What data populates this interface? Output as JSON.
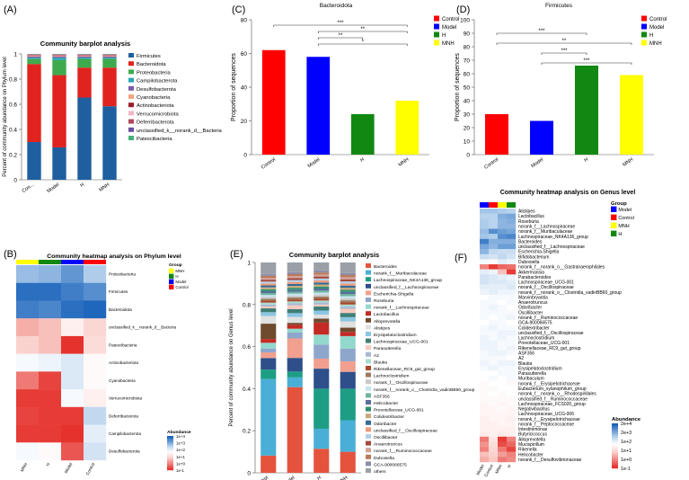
{
  "panels": {
    "A": "(A)",
    "B": "(B)",
    "C": "(C)",
    "D": "(D)",
    "E": "(E)",
    "F": "(F)"
  },
  "chart_data": [
    {
      "id": "A",
      "type": "bar",
      "stacked": true,
      "title": "Community barplot analysis",
      "ylabel": "Percent of community abundance on Phylum level",
      "ylim": [
        0,
        1
      ],
      "yticks": [
        "0",
        "0.2",
        "0.4",
        "0.6",
        "0.8",
        "1"
      ],
      "categories": [
        "Con...",
        "Model",
        "H",
        "MNH"
      ],
      "series": [
        {
          "name": "Firmicutes",
          "color": "#1f5fa0",
          "values": [
            0.3,
            0.26,
            0.66,
            0.59
          ]
        },
        {
          "name": "Bacteroidota",
          "color": "#e0231f",
          "values": [
            0.62,
            0.58,
            0.24,
            0.31
          ]
        },
        {
          "name": "Proteobacteria",
          "color": "#3faa4d",
          "values": [
            0.04,
            0.12,
            0.07,
            0.07
          ]
        },
        {
          "name": "Campilobacterota",
          "color": "#2aa7b5",
          "values": [
            0.01,
            0.02,
            0.01,
            0.01
          ]
        },
        {
          "name": "Desulfobacterota",
          "color": "#7b5aa6",
          "values": [
            0.01,
            0.01,
            0.01,
            0.01
          ]
        },
        {
          "name": "Cyanobacteria",
          "color": "#f4a582",
          "values": [
            0.005,
            0.005,
            0.005,
            0.005
          ]
        },
        {
          "name": "Actinobacteriota",
          "color": "#9b1c31",
          "values": [
            0.004,
            0.004,
            0.004,
            0.004
          ]
        },
        {
          "name": "Verrucomicrobiota",
          "color": "#f2b6c6",
          "values": [
            0.003,
            0.003,
            0.003,
            0.003
          ]
        },
        {
          "name": "Deferribacterota",
          "color": "#b5485d",
          "values": [
            0.003,
            0.003,
            0.003,
            0.003
          ]
        },
        {
          "name": "unclassified_k__norank_d__Bacteria",
          "color": "#6b4fa0",
          "values": [
            0.003,
            0.003,
            0.003,
            0.003
          ]
        },
        {
          "name": "Patescibacteria",
          "color": "#47b07a",
          "values": [
            0.002,
            0.002,
            0.002,
            0.002
          ]
        }
      ]
    },
    {
      "id": "C",
      "type": "bar",
      "title": "Bacteroidota",
      "ylabel": "Proportion of sequences",
      "ylim": [
        0,
        80
      ],
      "yticks": [
        0,
        20,
        40,
        60,
        80
      ],
      "categories": [
        "Control",
        "Model",
        "H",
        "MNH"
      ],
      "colors": [
        "#ff0000",
        "#0000ff",
        "#118811",
        "#ffff00"
      ],
      "values": [
        62,
        58,
        24,
        32
      ],
      "legend": [
        "Control",
        "Model",
        "H",
        "MNH"
      ],
      "significance": [
        {
          "from": 0,
          "to": 3,
          "label": "***"
        },
        {
          "from": 1,
          "to": 3,
          "label": "**"
        },
        {
          "from": 1,
          "to": 2,
          "label": "**"
        },
        {
          "from": 1,
          "to": 3,
          "label": "*"
        }
      ]
    },
    {
      "id": "D",
      "type": "bar",
      "title": "Firmicutes",
      "ylabel": "Proportion of sequences",
      "ylim": [
        0,
        100
      ],
      "yticks": [
        0,
        10,
        20,
        30,
        40,
        50,
        60,
        70,
        80,
        90,
        100
      ],
      "categories": [
        "Control",
        "Model",
        "H",
        "MNH"
      ],
      "colors": [
        "#ff0000",
        "#0000ff",
        "#118811",
        "#ffff00"
      ],
      "values": [
        30,
        25,
        66,
        59
      ],
      "legend": [
        "Control",
        "Model",
        "H",
        "MNH"
      ],
      "significance": [
        {
          "from": 0,
          "to": 2,
          "label": "***"
        },
        {
          "from": 0,
          "to": 3,
          "label": "**"
        },
        {
          "from": 1,
          "to": 2,
          "label": "***"
        },
        {
          "from": 1,
          "to": 3,
          "label": "***"
        }
      ]
    },
    {
      "id": "B",
      "type": "heatmap",
      "title": "Community heatmap analysis on Phylum level",
      "columns": [
        "MNH",
        "H",
        "Model",
        "Control"
      ],
      "column_colors": [
        "#ffff00",
        "#118811",
        "#0000ff",
        "#ff0000"
      ],
      "rows": [
        "Proteobacteria",
        "Firmicutes",
        "Bacteroidota",
        "unclassified_k__norank_d__Bacteria",
        "Patescibacteria",
        "Actinobacteriota",
        "Cyanobacteria",
        "Verrucomicrobiota",
        "Deferribacterota",
        "Campilobacterota",
        "Desulfobacterota"
      ],
      "log10_values": [
        [
          3.2,
          3.3,
          3.7,
          3.0
        ],
        [
          4.2,
          4.2,
          4.0,
          3.8
        ],
        [
          4.0,
          3.9,
          4.2,
          4.3
        ],
        [
          0.8,
          1.0,
          1.8,
          1.3
        ],
        [
          1.2,
          1.0,
          -0.6,
          1.4
        ],
        [
          2.2,
          2.3,
          2.5,
          2.0
        ],
        [
          0.2,
          -0.4,
          2.5,
          2.0
        ],
        [
          -0.5,
          -0.5,
          2.2,
          1.8
        ],
        [
          -0.4,
          -0.5,
          -0.5,
          2.8
        ],
        [
          -0.5,
          -0.5,
          -0.6,
          2.4
        ],
        [
          2.2,
          2.0,
          -0.2,
          2.6
        ]
      ],
      "legend": {
        "title": "Group",
        "items": [
          "MNH",
          "H",
          "Model",
          "Control"
        ]
      },
      "scale": {
        "title": "Abundance",
        "labels": [
          "1e+4",
          "1e+3",
          "1e+2",
          "1e+1",
          "1e+0",
          "1e-1"
        ]
      }
    },
    {
      "id": "E",
      "type": "bar",
      "stacked": true,
      "title": "Community barplot analysis",
      "ylabel": "Percent of community abundance on Genus level",
      "ylim": [
        0,
        1
      ],
      "yticks": [
        "0",
        "0.2",
        "0.4",
        "0.6",
        "0.8",
        "1"
      ],
      "categories": [
        "Control",
        "Model",
        "H",
        "MNH"
      ],
      "series": [
        {
          "name": "Bacteroides",
          "color": "#e5533d",
          "values": [
            0.09,
            0.44,
            0.12,
            0.1
          ]
        },
        {
          "name": "norank_f__Muribaculaceae",
          "color": "#4aafd6",
          "values": [
            0.4,
            0.05,
            0.1,
            0.15
          ]
        },
        {
          "name": "Lachnospiraceae_NK4A136_group",
          "color": "#1d9e84",
          "values": [
            0.05,
            0.03,
            0.2,
            0.15
          ]
        },
        {
          "name": "unclassified_f__Lachnospiraceae",
          "color": "#2e4f8a",
          "values": [
            0.06,
            0.07,
            0.1,
            0.08
          ]
        },
        {
          "name": "Escherichia-Shigella",
          "color": "#f1a08f",
          "values": [
            0.03,
            0.1,
            0.05,
            0.05
          ]
        },
        {
          "name": "Roseburia",
          "color": "#8fa6cc",
          "values": [
            0.02,
            0.03,
            0.07,
            0.06
          ]
        },
        {
          "name": "norank_f__Lachnospiraceae",
          "color": "#93d8cd",
          "values": [
            0.03,
            0.02,
            0.05,
            0.06
          ]
        },
        {
          "name": "Lactobacillus",
          "color": "#c42a24",
          "values": [
            0.02,
            0.02,
            0.06,
            0.02
          ]
        },
        {
          "name": "Alloprevotella",
          "color": "#6f4a2e",
          "values": [
            0.08,
            0.01,
            0.02,
            0.02
          ]
        },
        {
          "name": "Alistipes",
          "color": "#e0e0e0",
          "values": [
            0.04,
            0.03,
            0.02,
            0.03
          ]
        },
        {
          "name": "Erysipelatoclostridium",
          "color": "#8bc6e3",
          "values": [
            0.02,
            0.02,
            0.02,
            0.02
          ]
        },
        {
          "name": "Lachnospiraceae_UCG-001",
          "color": "#3e7e75",
          "values": [
            0.02,
            0.02,
            0.02,
            0.02
          ]
        },
        {
          "name": "Parasutterella",
          "color": "#f6c9bd",
          "values": [
            0.01,
            0.02,
            0.01,
            0.02
          ]
        },
        {
          "name": "A2",
          "color": "#a9b7d4",
          "values": [
            0.01,
            0.01,
            0.01,
            0.01
          ]
        },
        {
          "name": "Blautia",
          "color": "#a9dccf",
          "values": [
            0.01,
            0.01,
            0.01,
            0.01
          ]
        },
        {
          "name": "Rikenellaceae_RC9_gut_group",
          "color": "#a9482b",
          "values": [
            0.01,
            0.01,
            0.01,
            0.01
          ]
        },
        {
          "name": "Lachnoclostridium",
          "color": "#9c7a5c",
          "values": [
            0.01,
            0.01,
            0.01,
            0.01
          ]
        },
        {
          "name": "norank_f__Oscillospiraceae",
          "color": "#c9c9c9",
          "values": [
            0.01,
            0.01,
            0.01,
            0.01
          ]
        },
        {
          "name": "norank_f__norank_o__Clostridia_vadinBB60_group",
          "color": "#c6e3f0",
          "values": [
            0.01,
            0.01,
            0.01,
            0.01
          ]
        },
        {
          "name": "ASF356",
          "color": "#6fb39e",
          "values": [
            0.01,
            0.01,
            0.01,
            0.01
          ]
        },
        {
          "name": "Helicobacter",
          "color": "#586d9c",
          "values": [
            0.01,
            0.01,
            0.01,
            0.01
          ]
        },
        {
          "name": "Prevotellaceae_UCG-001",
          "color": "#2f8f6f",
          "values": [
            0.01,
            0.01,
            0.01,
            0.01
          ]
        },
        {
          "name": "Colidextribacter",
          "color": "#c9a97a",
          "values": [
            0.01,
            0.01,
            0.01,
            0.01
          ]
        },
        {
          "name": "Odoribacter",
          "color": "#356b96",
          "values": [
            0.01,
            0.01,
            0.01,
            0.01
          ]
        },
        {
          "name": "unclassified_f__Oscillospiraceae",
          "color": "#ef9a7a",
          "values": [
            0.01,
            0.01,
            0.01,
            0.01
          ]
        },
        {
          "name": "Oscillibacter",
          "color": "#b5cfe6",
          "values": [
            0.01,
            0.01,
            0.01,
            0.01
          ]
        },
        {
          "name": "Anaerotruncus",
          "color": "#a44a3f",
          "values": [
            0.01,
            0.01,
            0.01,
            0.01
          ]
        },
        {
          "name": "norank_f__Ruminococcaceae",
          "color": "#d4a19b",
          "values": [
            0.01,
            0.01,
            0.01,
            0.01
          ]
        },
        {
          "name": "Dubosiella",
          "color": "#b97a57",
          "values": [
            0.01,
            0.01,
            0.01,
            0.01
          ]
        },
        {
          "name": "GCA-900066575",
          "color": "#8e8ea8",
          "values": [
            0.01,
            0.01,
            0.01,
            0.01
          ]
        },
        {
          "name": "others",
          "color": "#9aa0a6",
          "values": [
            0.06,
            0.05,
            0.04,
            0.05
          ]
        }
      ]
    },
    {
      "id": "F",
      "type": "heatmap",
      "title": "Community heatmap analysis on Genus level",
      "columns": [
        "Model",
        "Control",
        "MNH",
        "H"
      ],
      "column_colors": [
        "#0000ff",
        "#ff0000",
        "#ffff00",
        "#118811"
      ],
      "rows": [
        "Alistipes",
        "Lactobacillus",
        "Roseburia",
        "norank_f__Lachnospiraceae",
        "norank_f__Muribaculaceae",
        "Lachnospiraceae_NK4A136_group",
        "Bacteroides",
        "unclassified_f__Lachnospiraceae",
        "Escherichia-Shigella",
        "Bifidobacterium",
        "Dubosiella",
        "norank_f__norank_o__Gastranaerophilales",
        "Akkermansia",
        "Parabacteroides",
        "Lachnospiraceae_UCG-001",
        "norank_f__Oscillospiraceae",
        "norank_f__norank_o__Clostridia_vadinBB60_group",
        "Marvinbryantia",
        "Anaerotruncus",
        "Odoribacter",
        "Oscillibacter",
        "norank_f__Ruminococcaceae",
        "GCA-900066575",
        "Colidextribacter",
        "unclassified_f__Oscillospiraceae",
        "Lachnoclostridium",
        "Prevotellaceae_UCG-001",
        "Rikenellaceae_RC9_gut_group",
        "ASF356",
        "A2",
        "Blautia",
        "Erysipelatoclostridium",
        "Parasutterella",
        "Muribaculum",
        "norank_f__Erysipelotrichaceae",
        "Eubacterium_xylanophilum_group",
        "norank_f__norank_o__Rhodospirillales",
        "unclassified_f__Ruminococcaceae",
        "Lachnospiraceae_FCS020_group",
        "Negativibacillus",
        "Lachnospiraceae_UCG-006",
        "norank_f__Erysipelotrichaceae",
        "norank_f__Peptococcaceae",
        "Intestinimonas",
        "Butyricicoccus",
        "Alloprevotella",
        "Mucispirillum",
        "Rikenella",
        "Helicobacter",
        "norank_f__Desulfovibrionaceae"
      ],
      "log10_values": [
        [
          3.1,
          3.1,
          3.0,
          2.9
        ],
        [
          2.9,
          2.9,
          3.4,
          3.5
        ],
        [
          3.0,
          2.9,
          3.3,
          3.4
        ],
        [
          3.0,
          2.9,
          3.3,
          3.3
        ],
        [
          3.2,
          3.8,
          3.6,
          3.5
        ],
        [
          3.1,
          3.0,
          3.8,
          3.9
        ],
        [
          4.0,
          3.4,
          3.4,
          3.4
        ],
        [
          3.5,
          3.3,
          3.6,
          3.6
        ],
        [
          3.3,
          2.8,
          2.7,
          2.7
        ],
        [
          2.7,
          2.6,
          2.8,
          2.6
        ],
        [
          2.2,
          2.0,
          2.4,
          2.3
        ],
        [
          0.3,
          -0.5,
          0.0,
          0.1
        ],
        [
          2.4,
          2.3,
          1.0,
          -0.5
        ],
        [
          2.6,
          2.5,
          2.4,
          2.3
        ],
        [
          2.6,
          2.5,
          2.5,
          2.4
        ],
        [
          2.4,
          2.4,
          2.4,
          2.5
        ],
        [
          2.3,
          2.4,
          2.3,
          2.3
        ],
        [
          2.1,
          2.2,
          2.2,
          2.2
        ],
        [
          2.2,
          2.2,
          2.1,
          2.2
        ],
        [
          2.2,
          2.3,
          2.2,
          2.1
        ],
        [
          2.2,
          2.2,
          2.2,
          2.2
        ],
        [
          2.2,
          2.1,
          2.2,
          2.3
        ],
        [
          2.1,
          2.2,
          2.2,
          2.1
        ],
        [
          2.2,
          2.3,
          2.2,
          2.2
        ],
        [
          2.2,
          2.2,
          2.3,
          2.3
        ],
        [
          2.3,
          2.2,
          2.3,
          2.2
        ],
        [
          2.3,
          2.3,
          2.2,
          2.2
        ],
        [
          2.3,
          2.3,
          2.2,
          2.3
        ],
        [
          2.2,
          2.3,
          2.3,
          2.2
        ],
        [
          2.2,
          2.2,
          2.2,
          2.1
        ],
        [
          2.3,
          2.2,
          2.3,
          2.3
        ],
        [
          2.2,
          2.3,
          2.2,
          2.2
        ],
        [
          2.1,
          2.1,
          2.2,
          2.2
        ],
        [
          2.1,
          2.2,
          2.1,
          2.2
        ],
        [
          2.0,
          2.1,
          2.1,
          2.0
        ],
        [
          2.0,
          2.0,
          2.1,
          2.1
        ],
        [
          2.0,
          2.1,
          2.0,
          2.1
        ],
        [
          2.0,
          2.0,
          2.0,
          2.0
        ],
        [
          1.9,
          2.0,
          1.9,
          2.0
        ],
        [
          1.9,
          1.9,
          2.0,
          1.9
        ],
        [
          1.9,
          1.9,
          1.9,
          1.9
        ],
        [
          1.8,
          1.9,
          1.9,
          1.8
        ],
        [
          1.8,
          1.8,
          1.9,
          1.9
        ],
        [
          1.8,
          1.8,
          1.8,
          1.8
        ],
        [
          1.7,
          1.8,
          1.7,
          1.8
        ],
        [
          0.2,
          1.6,
          -0.5,
          0.3
        ],
        [
          0.5,
          1.4,
          -0.3,
          0.0
        ],
        [
          0.3,
          1.3,
          0.2,
          -0.4
        ],
        [
          1.0,
          1.2,
          0.6,
          0.3
        ],
        [
          0.8,
          1.1,
          0.2,
          0.4
        ]
      ],
      "legend": {
        "title": "Group",
        "items": [
          "Model",
          "Control",
          "MNH",
          "H"
        ]
      },
      "scale": {
        "title": "Abundance",
        "labels": [
          "2e+4",
          "2e+3",
          "1e+2",
          "1e+1",
          "1e+0",
          "1e-1"
        ]
      }
    }
  ]
}
